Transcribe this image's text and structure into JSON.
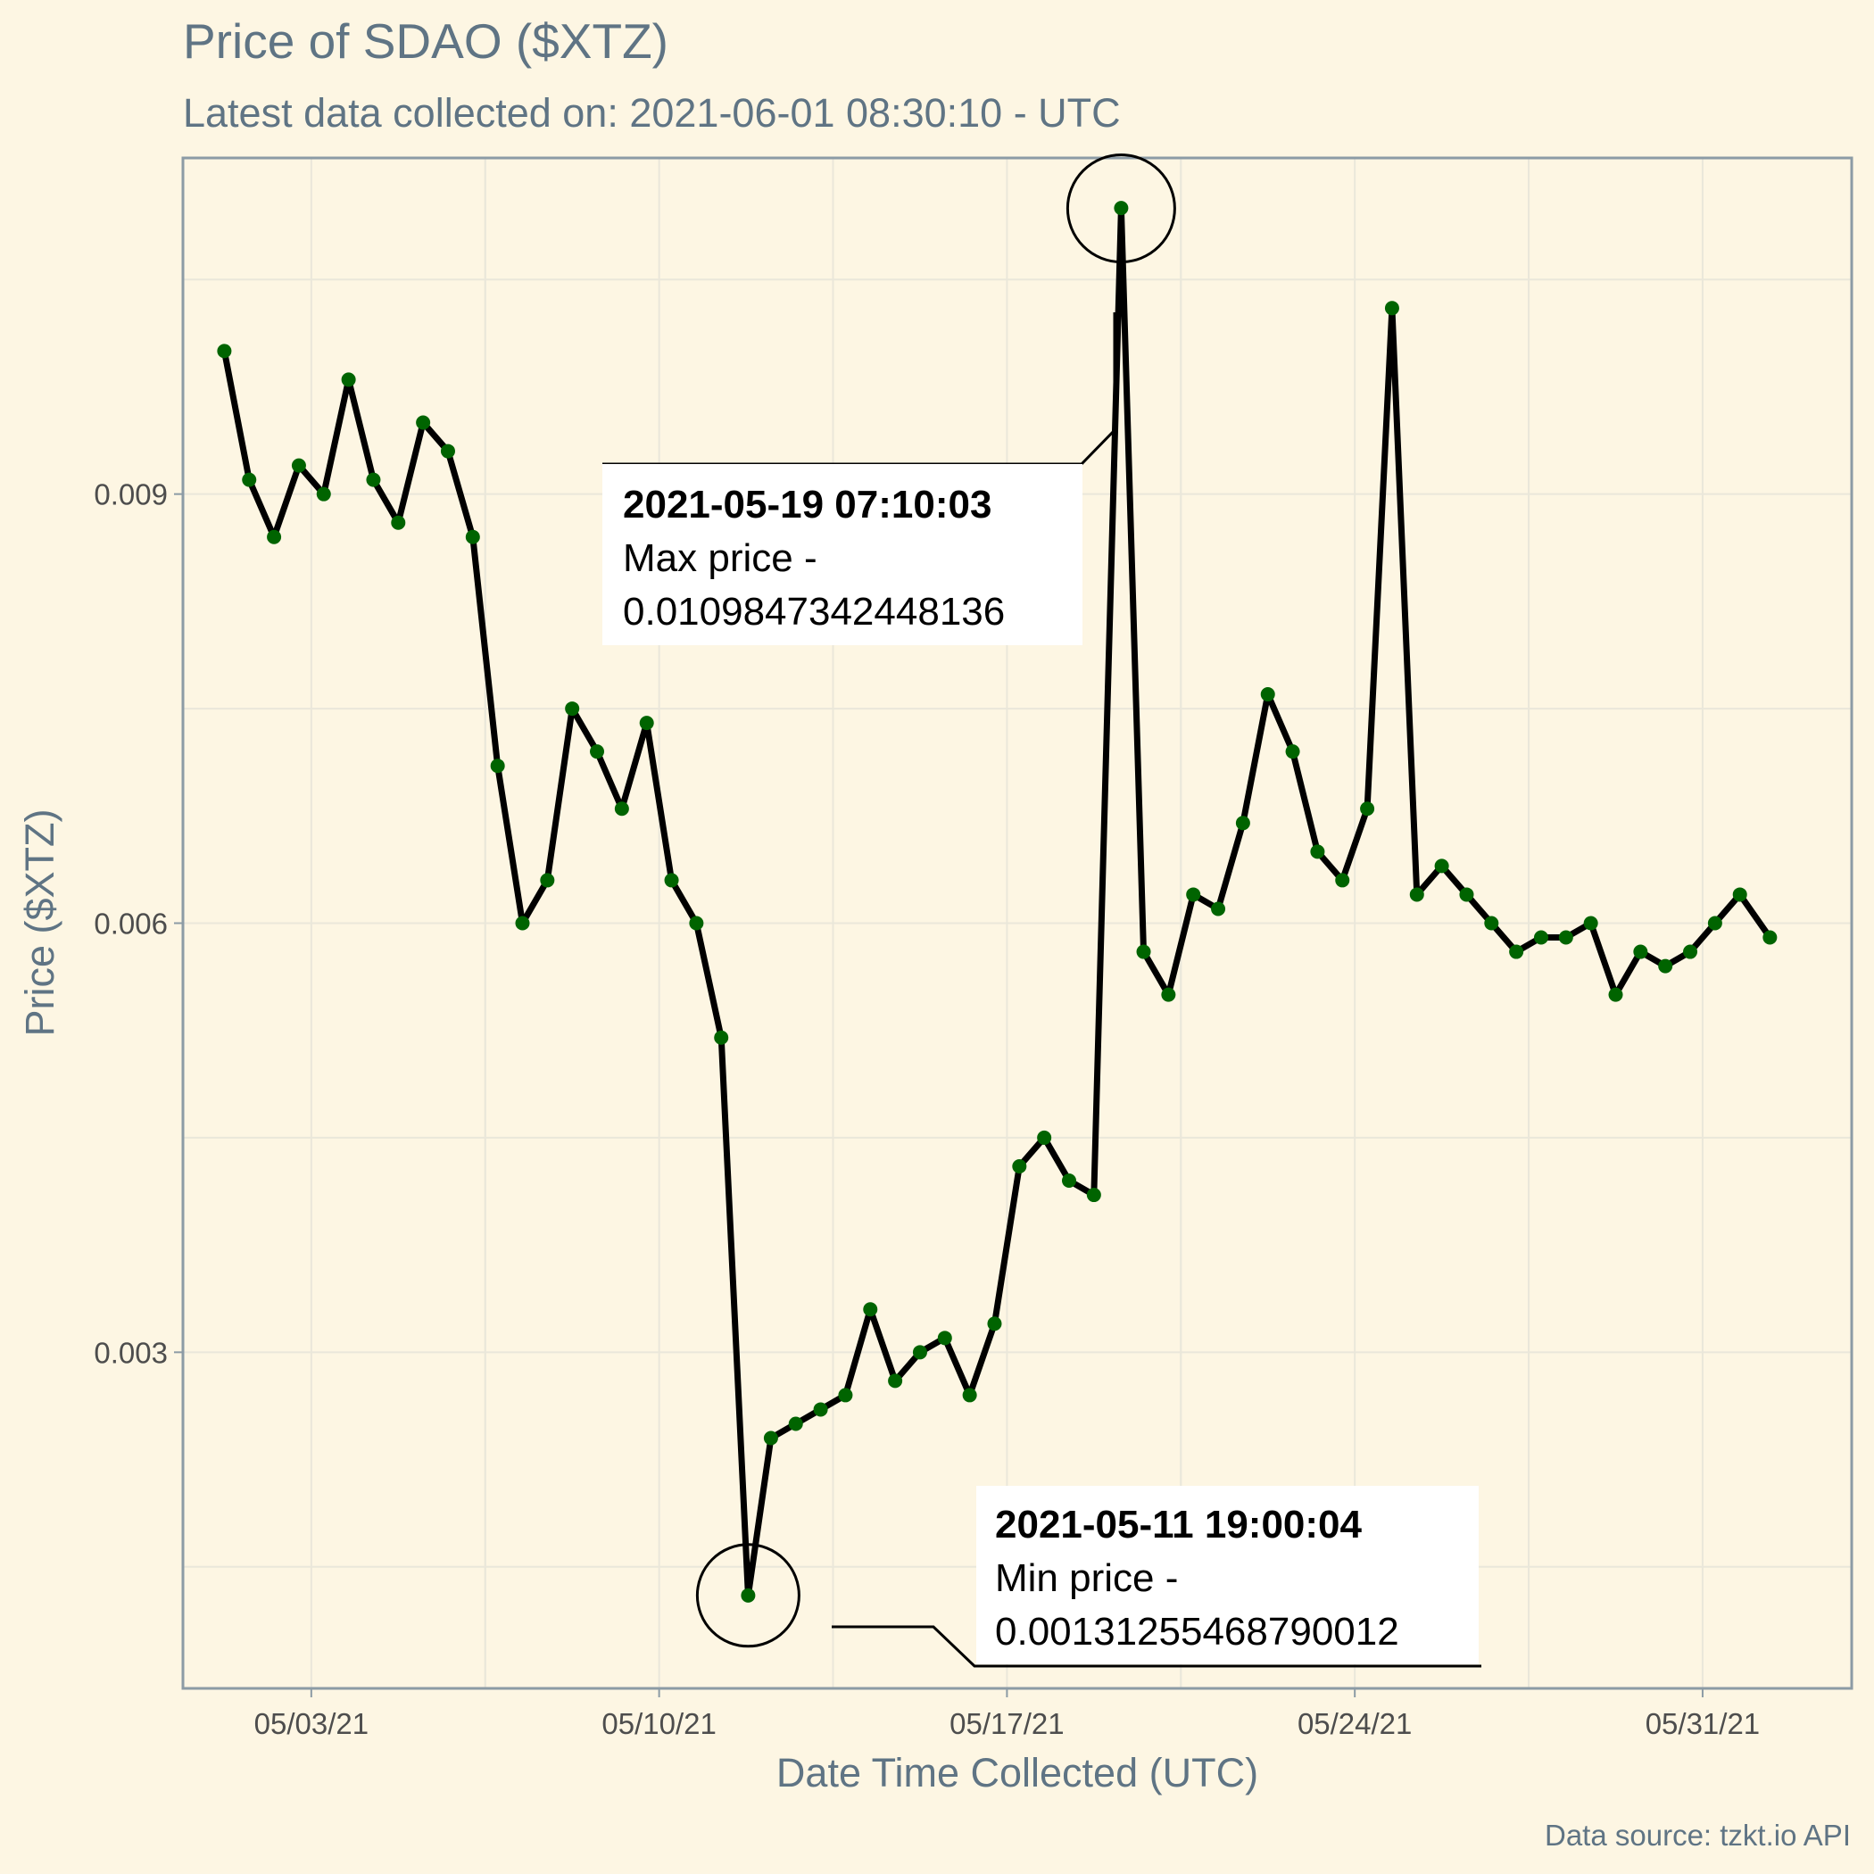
{
  "chart_data": {
    "type": "line",
    "title": "Price of SDAO ($XTZ)",
    "subtitle": "Latest data collected on: 2021-06-01 08:30:10  - UTC",
    "xlabel": "Date Time Collected (UTC)",
    "ylabel": "Price ($XTZ)",
    "caption": "Data source: tzkt.io API",
    "x_ticks": [
      "05/03/21",
      "05/10/21",
      "05/17/21",
      "05/24/21",
      "05/31/21"
    ],
    "y_ticks": [
      "0.003",
      "0.006",
      "0.009"
    ],
    "xlim": [
      "2021-04-30 10:00",
      "2021-06-03 00:00"
    ],
    "ylim": [
      0.00065,
      0.01135
    ],
    "grid": true,
    "colors": {
      "line": "#000000",
      "points": "#006400",
      "background": "#fdf6e3",
      "panel_border": "#8c9ba5"
    },
    "x": [
      "2021-05-01 06:00",
      "2021-05-01 18:00",
      "2021-05-02 06:00",
      "2021-05-02 18:00",
      "2021-05-03 06:00",
      "2021-05-03 18:00",
      "2021-05-04 06:00",
      "2021-05-04 18:00",
      "2021-05-05 06:00",
      "2021-05-05 18:00",
      "2021-05-06 06:00",
      "2021-05-06 18:00",
      "2021-05-07 06:00",
      "2021-05-07 18:00",
      "2021-05-08 06:00",
      "2021-05-08 18:00",
      "2021-05-09 06:00",
      "2021-05-09 18:00",
      "2021-05-10 06:00",
      "2021-05-10 18:00",
      "2021-05-11 06:00",
      "2021-05-11 19:00",
      "2021-05-12 06:00",
      "2021-05-12 18:00",
      "2021-05-13 06:00",
      "2021-05-13 18:00",
      "2021-05-14 06:00",
      "2021-05-14 18:00",
      "2021-05-15 06:00",
      "2021-05-15 18:00",
      "2021-05-16 06:00",
      "2021-05-16 18:00",
      "2021-05-17 06:00",
      "2021-05-17 18:00",
      "2021-05-18 06:00",
      "2021-05-18 18:00",
      "2021-05-19 07:10",
      "2021-05-19 18:00",
      "2021-05-20 06:00",
      "2021-05-20 18:00",
      "2021-05-21 06:00",
      "2021-05-21 18:00",
      "2021-05-22 06:00",
      "2021-05-22 18:00",
      "2021-05-23 06:00",
      "2021-05-23 18:00",
      "2021-05-24 06:00",
      "2021-05-24 18:00",
      "2021-05-25 06:00",
      "2021-05-25 18:00",
      "2021-05-26 06:00",
      "2021-05-26 18:00",
      "2021-05-27 06:00",
      "2021-05-27 18:00",
      "2021-05-28 06:00",
      "2021-05-28 18:00",
      "2021-05-29 06:00",
      "2021-05-29 18:00",
      "2021-05-30 06:00",
      "2021-05-30 18:00",
      "2021-05-31 06:00",
      "2021-05-31 18:00",
      "2021-06-01 08:30"
    ],
    "y": [
      0.01,
      0.0091,
      0.0087,
      0.0092,
      0.009,
      0.0098,
      0.0091,
      0.0088,
      0.0095,
      0.0093,
      0.0087,
      0.0071,
      0.006,
      0.0063,
      0.0075,
      0.0072,
      0.0068,
      0.0074,
      0.0063,
      0.006,
      0.0052,
      0.0013,
      0.0024,
      0.0025,
      0.0026,
      0.0027,
      0.0033,
      0.0028,
      0.003,
      0.0031,
      0.0027,
      0.0032,
      0.0043,
      0.0045,
      0.0042,
      0.0041,
      0.011,
      0.0058,
      0.0055,
      0.0062,
      0.0061,
      0.0067,
      0.0076,
      0.0072,
      0.0065,
      0.0063,
      0.0068,
      0.0103,
      0.0062,
      0.0064,
      0.0062,
      0.006,
      0.0058,
      0.0059,
      0.0059,
      0.006,
      0.0055,
      0.0058,
      0.0057,
      0.0058,
      0.006,
      0.0062,
      0.0059
    ],
    "annotations": [
      {
        "datetime": "2021-05-19 07:10:03",
        "label": "Max price -",
        "value": "0.0109847342448136"
      },
      {
        "datetime": "2021-05-11 19:00:04",
        "label": "Min price -",
        "value": "0.00131255468790012"
      }
    ]
  }
}
